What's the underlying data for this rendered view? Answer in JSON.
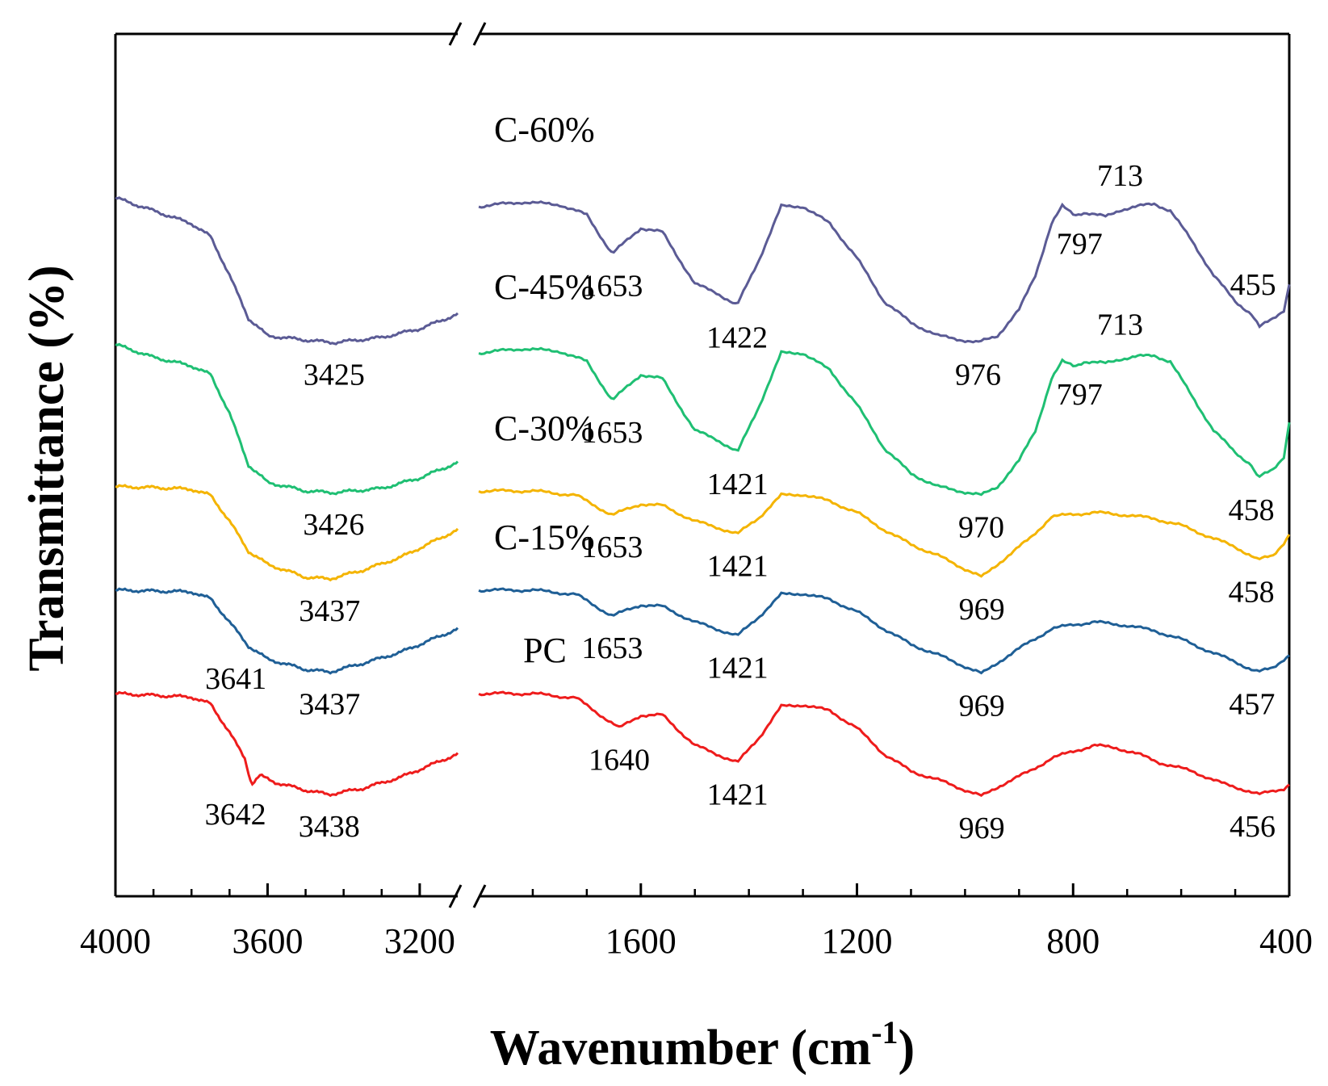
{
  "chart_data": {
    "type": "line",
    "title": "",
    "xlabel": "Wavenumber (cm",
    "xlabel_superscript": "-1",
    "xlabel_close": ")",
    "ylabel": "Transmittance (%)",
    "x_reversed": true,
    "x_break": [
      3100,
      1900
    ],
    "xlim_left": [
      4000,
      3100
    ],
    "xlim_right": [
      1900,
      400
    ],
    "y_units": "arbitrary (offset stacked)",
    "y_range": [
      0,
      100
    ],
    "x_ticks_labeled": [
      "4000",
      "3600",
      "3200",
      "1600",
      "1200",
      "800",
      "400"
    ],
    "x_tick_values": [
      4000,
      3600,
      3200,
      1600,
      1200,
      800,
      400
    ],
    "colors": {
      "C-60%": "#5b5b95",
      "C-45%": "#1fbf73",
      "C-30%": "#f4b400",
      "C-15%": "#1f5f96",
      "PC": "#ee1c1c"
    },
    "series": [
      {
        "name": "C-60%",
        "label_text": "C-60%",
        "base": 81,
        "points": [
          [
            4000,
            81
          ],
          [
            3900,
            79.5
          ],
          [
            3800,
            78
          ],
          [
            3750,
            76.5
          ],
          [
            3700,
            72
          ],
          [
            3650,
            67
          ],
          [
            3600,
            65
          ],
          [
            3500,
            64.5
          ],
          [
            3425,
            64.2
          ],
          [
            3300,
            64.8
          ],
          [
            3200,
            65.8
          ],
          [
            3100,
            67.5
          ],
          [
            1900,
            80
          ],
          [
            1820,
            80.5
          ],
          [
            1750,
            80.2
          ],
          [
            1700,
            79
          ],
          [
            1653,
            74.5
          ],
          [
            1600,
            77.5
          ],
          [
            1560,
            77
          ],
          [
            1500,
            71
          ],
          [
            1460,
            70
          ],
          [
            1422,
            68.5
          ],
          [
            1380,
            74
          ],
          [
            1340,
            80
          ],
          [
            1300,
            80
          ],
          [
            1250,
            78
          ],
          [
            1200,
            74
          ],
          [
            1150,
            69
          ],
          [
            1100,
            66.5
          ],
          [
            1050,
            65
          ],
          [
            976,
            64.2
          ],
          [
            940,
            65
          ],
          [
            900,
            68
          ],
          [
            870,
            72
          ],
          [
            840,
            78
          ],
          [
            820,
            80
          ],
          [
            797,
            79
          ],
          [
            780,
            79.3
          ],
          [
            740,
            78.8
          ],
          [
            713,
            79.6
          ],
          [
            680,
            80
          ],
          [
            650,
            80.3
          ],
          [
            620,
            79.5
          ],
          [
            580,
            76
          ],
          [
            540,
            72
          ],
          [
            500,
            69
          ],
          [
            470,
            67.5
          ],
          [
            455,
            66
          ],
          [
            430,
            67
          ],
          [
            410,
            68
          ],
          [
            400,
            71
          ]
        ],
        "peaks": [
          {
            "label": "3425",
            "x": 3425
          },
          {
            "label": "1653",
            "x": 1653
          },
          {
            "label": "1422",
            "x": 1422
          },
          {
            "label": "976",
            "x": 976
          },
          {
            "label": "797",
            "x": 797
          },
          {
            "label": "713",
            "x": 713
          },
          {
            "label": "455",
            "x": 455
          }
        ]
      },
      {
        "name": "C-45%",
        "label_text": "C-45%",
        "base": 63,
        "points": [
          [
            4000,
            64
          ],
          [
            3900,
            62.5
          ],
          [
            3800,
            61.5
          ],
          [
            3750,
            60.5
          ],
          [
            3700,
            56
          ],
          [
            3650,
            50
          ],
          [
            3600,
            48
          ],
          [
            3500,
            47
          ],
          [
            3426,
            46.8
          ],
          [
            3300,
            47.3
          ],
          [
            3200,
            48.5
          ],
          [
            3100,
            50.3
          ],
          [
            1900,
            63
          ],
          [
            1820,
            63.5
          ],
          [
            1750,
            63.2
          ],
          [
            1700,
            62
          ],
          [
            1653,
            57.5
          ],
          [
            1600,
            60.5
          ],
          [
            1560,
            60
          ],
          [
            1500,
            54
          ],
          [
            1460,
            53
          ],
          [
            1421,
            51.5
          ],
          [
            1380,
            57
          ],
          [
            1340,
            63
          ],
          [
            1300,
            63
          ],
          [
            1250,
            61
          ],
          [
            1200,
            57
          ],
          [
            1150,
            52
          ],
          [
            1100,
            49
          ],
          [
            1050,
            47.5
          ],
          [
            970,
            46.5
          ],
          [
            940,
            47.5
          ],
          [
            900,
            50.5
          ],
          [
            870,
            54
          ],
          [
            840,
            60
          ],
          [
            820,
            62
          ],
          [
            797,
            61.5
          ],
          [
            780,
            62
          ],
          [
            740,
            61.8
          ],
          [
            713,
            62.3
          ],
          [
            680,
            62.6
          ],
          [
            650,
            62.7
          ],
          [
            620,
            62
          ],
          [
            580,
            58
          ],
          [
            540,
            54
          ],
          [
            500,
            51.5
          ],
          [
            470,
            50
          ],
          [
            458,
            48.5
          ],
          [
            430,
            49.5
          ],
          [
            410,
            51
          ],
          [
            400,
            55
          ]
        ],
        "peaks": [
          {
            "label": "3426",
            "x": 3426
          },
          {
            "label": "1653",
            "x": 1653
          },
          {
            "label": "1421",
            "x": 1421
          },
          {
            "label": "970",
            "x": 970
          },
          {
            "label": "797",
            "x": 797
          },
          {
            "label": "713",
            "x": 713
          },
          {
            "label": "458",
            "x": 458
          }
        ]
      },
      {
        "name": "C-30%",
        "label_text": "C-30%",
        "base": 47,
        "points": [
          [
            4000,
            47.5
          ],
          [
            3900,
            47.4
          ],
          [
            3800,
            47.2
          ],
          [
            3750,
            46.5
          ],
          [
            3700,
            43.5
          ],
          [
            3650,
            40
          ],
          [
            3600,
            38.5
          ],
          [
            3500,
            37
          ],
          [
            3437,
            36.8
          ],
          [
            3350,
            37.8
          ],
          [
            3250,
            39.3
          ],
          [
            3100,
            42.5
          ],
          [
            1900,
            47
          ],
          [
            1800,
            47
          ],
          [
            1720,
            46.5
          ],
          [
            1653,
            44.2
          ],
          [
            1600,
            45.5
          ],
          [
            1560,
            45.3
          ],
          [
            1500,
            43.5
          ],
          [
            1460,
            42.8
          ],
          [
            1421,
            42
          ],
          [
            1380,
            44
          ],
          [
            1340,
            46.5
          ],
          [
            1300,
            46.6
          ],
          [
            1250,
            45.8
          ],
          [
            1200,
            44.5
          ],
          [
            1150,
            42.5
          ],
          [
            1100,
            40.8
          ],
          [
            1050,
            39.5
          ],
          [
            969,
            37
          ],
          [
            930,
            39
          ],
          [
            880,
            41.5
          ],
          [
            840,
            44
          ],
          [
            800,
            44.3
          ],
          [
            760,
            44.5
          ],
          [
            700,
            44.2
          ],
          [
            650,
            43.8
          ],
          [
            600,
            43
          ],
          [
            540,
            41.5
          ],
          [
            500,
            40.5
          ],
          [
            470,
            39.5
          ],
          [
            458,
            39
          ],
          [
            430,
            39.5
          ],
          [
            410,
            41
          ],
          [
            400,
            42
          ]
        ],
        "peaks": [
          {
            "label": "3437",
            "x": 3437
          },
          {
            "label": "1653",
            "x": 1653
          },
          {
            "label": "1421",
            "x": 1421
          },
          {
            "label": "969",
            "x": 969
          },
          {
            "label": "458",
            "x": 458
          }
        ]
      },
      {
        "name": "C-15%",
        "label_text": "C-15%",
        "base": 35.5,
        "points": [
          [
            4000,
            35.5
          ],
          [
            3900,
            35.4
          ],
          [
            3800,
            35.3
          ],
          [
            3750,
            34.5
          ],
          [
            3700,
            31.8
          ],
          [
            3650,
            29
          ],
          [
            3600,
            27.5
          ],
          [
            3500,
            26.3
          ],
          [
            3437,
            26
          ],
          [
            3350,
            27
          ],
          [
            3250,
            28.3
          ],
          [
            3100,
            31
          ],
          [
            1900,
            35.5
          ],
          [
            1800,
            35.5
          ],
          [
            1720,
            35
          ],
          [
            1653,
            32.5
          ],
          [
            1600,
            33.8
          ],
          [
            1560,
            33.6
          ],
          [
            1500,
            31.8
          ],
          [
            1460,
            31
          ],
          [
            1421,
            30.2
          ],
          [
            1380,
            32.5
          ],
          [
            1340,
            35
          ],
          [
            1300,
            35.1
          ],
          [
            1250,
            34.4
          ],
          [
            1200,
            33
          ],
          [
            1150,
            31
          ],
          [
            1100,
            29.2
          ],
          [
            1050,
            28
          ],
          [
            969,
            25.8
          ],
          [
            930,
            27.5
          ],
          [
            880,
            29.5
          ],
          [
            840,
            31
          ],
          [
            800,
            31.5
          ],
          [
            760,
            31.8
          ],
          [
            700,
            31.4
          ],
          [
            650,
            30.8
          ],
          [
            600,
            29.8
          ],
          [
            540,
            28.2
          ],
          [
            500,
            27.2
          ],
          [
            470,
            26.3
          ],
          [
            457,
            26
          ],
          [
            430,
            26.5
          ],
          [
            410,
            27.5
          ],
          [
            400,
            28
          ]
        ],
        "peaks": [
          {
            "label": "3641",
            "x": 3641
          },
          {
            "label": "3437",
            "x": 3437
          },
          {
            "label": "1653",
            "x": 1653
          },
          {
            "label": "1421",
            "x": 1421
          },
          {
            "label": "969",
            "x": 969
          },
          {
            "label": "457",
            "x": 457
          }
        ]
      },
      {
        "name": "PC",
        "label_text": "PC",
        "base": 23.5,
        "points": [
          [
            4000,
            23.5
          ],
          [
            3900,
            23.3
          ],
          [
            3800,
            23.1
          ],
          [
            3750,
            22.3
          ],
          [
            3700,
            19
          ],
          [
            3660,
            16
          ],
          [
            3645,
            13.5
          ],
          [
            3642,
            13
          ],
          [
            3620,
            14
          ],
          [
            3580,
            13.2
          ],
          [
            3500,
            12.3
          ],
          [
            3438,
            11.8
          ],
          [
            3350,
            12.5
          ],
          [
            3250,
            13.8
          ],
          [
            3100,
            16.5
          ],
          [
            1900,
            23.5
          ],
          [
            1800,
            23.5
          ],
          [
            1720,
            23
          ],
          [
            1640,
            19.5
          ],
          [
            1600,
            21
          ],
          [
            1560,
            21
          ],
          [
            1500,
            17.5
          ],
          [
            1460,
            16.5
          ],
          [
            1421,
            15.5
          ],
          [
            1380,
            18.5
          ],
          [
            1340,
            22
          ],
          [
            1300,
            22.2
          ],
          [
            1250,
            21.5
          ],
          [
            1200,
            19.5
          ],
          [
            1150,
            16.5
          ],
          [
            1100,
            14.5
          ],
          [
            1050,
            13.5
          ],
          [
            969,
            11.6
          ],
          [
            930,
            13
          ],
          [
            880,
            14.5
          ],
          [
            840,
            16
          ],
          [
            800,
            16.8
          ],
          [
            760,
            17.5
          ],
          [
            720,
            17.2
          ],
          [
            680,
            16.5
          ],
          [
            640,
            15.5
          ],
          [
            580,
            14.5
          ],
          [
            520,
            13
          ],
          [
            480,
            12.3
          ],
          [
            456,
            11.8
          ],
          [
            430,
            12.2
          ],
          [
            410,
            12.5
          ],
          [
            400,
            13
          ]
        ],
        "peaks": [
          {
            "label": "3642",
            "x": 3642
          },
          {
            "label": "3438",
            "x": 3438
          },
          {
            "label": "1640",
            "x": 1640
          },
          {
            "label": "1421",
            "x": 1421
          },
          {
            "label": "969",
            "x": 969
          },
          {
            "label": "456",
            "x": 456
          }
        ]
      }
    ]
  }
}
